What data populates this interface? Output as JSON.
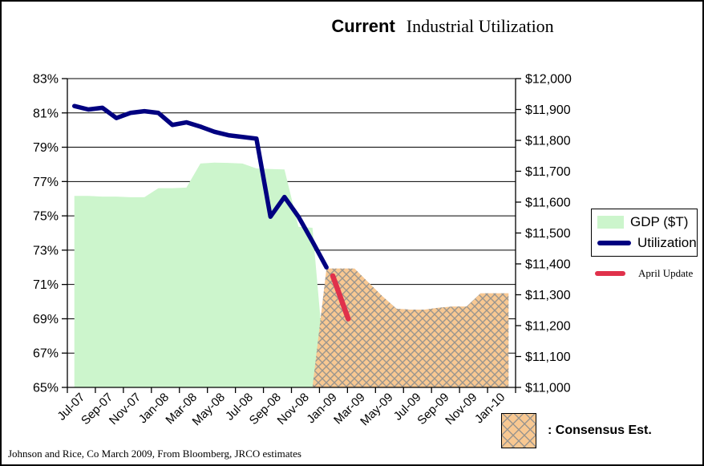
{
  "title": {
    "part1": "Current",
    "part2": "Industrial Utilization"
  },
  "footer": "Johnson and Rice, Co March 2009, From Bloomberg, JRCO estimates",
  "legend": {
    "gdp_label": "GDP ($T)",
    "utilization_label": "Utilization",
    "april_label": "April Update",
    "consensus_label": ": Consensus Est."
  },
  "colors": {
    "gdp_area": "#CCF5CC",
    "utilization_line": "#000080",
    "april_line": "#E0314B",
    "consensus_fill": "#F8C892",
    "consensus_hatch": "#9A958E",
    "gridline": "#000000"
  },
  "chart_data": {
    "type": "area+line combo",
    "title": "Current Industrial Utilization",
    "grid": "horizontal gridlines every 2% on left axis",
    "legend_position": "right",
    "x_labels": [
      "Jul-07",
      "Sep-07",
      "Nov-07",
      "Jan-08",
      "Mar-08",
      "May-08",
      "Jul-08",
      "Sep-08",
      "Nov-08",
      "Jan-09",
      "Mar-09",
      "May-09",
      "Jul-09",
      "Sep-09",
      "Nov-09",
      "Jan-10"
    ],
    "left_axis": {
      "unit": "%",
      "min": 65,
      "max": 83,
      "step": 2,
      "tick_labels": [
        "83%",
        "81%",
        "79%",
        "77%",
        "75%",
        "73%",
        "71%",
        "69%",
        "67%",
        "65%"
      ]
    },
    "right_axis": {
      "unit": "$",
      "min": 11000,
      "max": 12000,
      "step": 100,
      "tick_labels": [
        "$12,000",
        "$11,900",
        "$11,800",
        "$11,700",
        "$11,600",
        "$11,500",
        "$11,400",
        "$11,300",
        "$11,200",
        "$11,100",
        "$11,000"
      ]
    },
    "series": [
      {
        "name": "GDP ($T)",
        "type": "area",
        "axis": "right",
        "months": [
          "Jul-07",
          "Aug-07",
          "Sep-07",
          "Oct-07",
          "Nov-07",
          "Dec-07",
          "Jan-08",
          "Feb-08",
          "Mar-08",
          "Apr-08",
          "May-08",
          "Jun-08",
          "Jul-08",
          "Aug-08",
          "Sep-08",
          "Oct-08",
          "Nov-08",
          "Dec-08"
        ],
        "values": [
          11620,
          11620,
          11618,
          11618,
          11616,
          11616,
          11645,
          11645,
          11647,
          11725,
          11728,
          11727,
          11725,
          11709,
          11707,
          11706,
          11520,
          11517
        ]
      },
      {
        "name": "Consensus Est.",
        "type": "area",
        "axis": "right",
        "fill": "crosshatch",
        "months": [
          "Jan-09",
          "Feb-09",
          "Mar-09",
          "Apr-09",
          "May-09",
          "Jun-09",
          "Jul-09",
          "Aug-09",
          "Sep-09",
          "Oct-09",
          "Nov-09",
          "Dec-09",
          "Jan-10",
          "Feb-10"
        ],
        "values": [
          11385,
          11385,
          11385,
          11340,
          11295,
          11255,
          11252,
          11252,
          11258,
          11262,
          11262,
          11305,
          11305,
          11305
        ]
      },
      {
        "name": "Utilization",
        "type": "line",
        "axis": "left",
        "months": [
          "Jul-07",
          "Aug-07",
          "Sep-07",
          "Oct-07",
          "Nov-07",
          "Dec-07",
          "Jan-08",
          "Feb-08",
          "Mar-08",
          "Apr-08",
          "May-08",
          "Jun-08",
          "Jul-08",
          "Aug-08",
          "Sep-08",
          "Oct-08",
          "Nov-08",
          "Dec-08",
          "Jan-09"
        ],
        "values": [
          81.4,
          81.2,
          81.3,
          80.7,
          81.0,
          81.1,
          81.0,
          80.3,
          80.45,
          80.2,
          79.9,
          79.7,
          79.6,
          79.5,
          74.95,
          76.1,
          74.95,
          73.5,
          72.0
        ]
      },
      {
        "name": "April Update",
        "type": "line",
        "axis": "left",
        "points": [
          {
            "month": "Jan-09",
            "month_offset": 0.45,
            "value": 71.5
          },
          {
            "month": "Feb-09",
            "month_offset": 0.55,
            "value": 69.0
          }
        ]
      }
    ]
  }
}
